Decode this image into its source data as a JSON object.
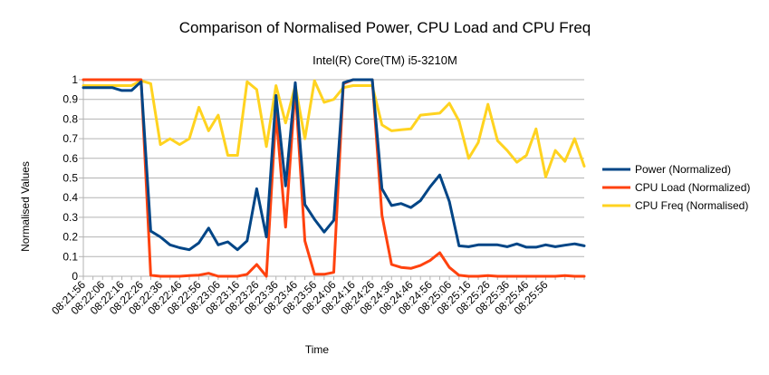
{
  "chart_data": {
    "type": "line",
    "title": "Comparison of Normalised Power, CPU Load and CPU Freq",
    "subtitle": "Intel(R) Core(TM) i5-3210M",
    "xlabel": "Time",
    "ylabel": "Normalised Values",
    "ylim": [
      0,
      1
    ],
    "yticks": [
      "0",
      "0.1",
      "0.2",
      "0.3",
      "0.4",
      "0.5",
      "0.6",
      "0.7",
      "0.8",
      "0.9",
      "1"
    ],
    "grid": "horizontal",
    "legend_position": "right",
    "xtick_labels": [
      "08:21:56",
      "08:22:06",
      "08:22:16",
      "08:22:26",
      "08:22:36",
      "08:22:46",
      "08:22:56",
      "08:23:06",
      "08:23:16",
      "08:23:26",
      "08:23:36",
      "08:23:46",
      "08:23:56",
      "08:24:06",
      "08:24:16",
      "08:24:26",
      "08:24:36",
      "08:24:46",
      "08:24:56",
      "08:25:06",
      "08:25:16",
      "08:25:26",
      "08:25:36",
      "08:25:46",
      "08:25:56"
    ],
    "x_start": "08:21:56",
    "x_step_seconds": 2,
    "series": [
      {
        "name": "Power (Normalized)",
        "color": "#004586",
        "values": [
          0.96,
          0.96,
          0.96,
          0.96,
          0.945,
          0.945,
          0.99,
          0.23,
          0.2,
          0.16,
          0.145,
          0.135,
          0.17,
          0.245,
          0.16,
          0.175,
          0.135,
          0.18,
          0.445,
          0.2,
          0.92,
          0.46,
          0.985,
          0.365,
          0.29,
          0.225,
          0.285,
          0.985,
          1.0,
          1.0,
          1.0,
          0.445,
          0.36,
          0.37,
          0.35,
          0.385,
          0.455,
          0.515,
          0.38,
          0.155,
          0.15,
          0.16,
          0.16,
          0.16,
          0.15,
          0.165,
          0.148,
          0.148,
          0.16,
          0.15,
          0.158,
          0.165,
          0.155
        ]
      },
      {
        "name": "CPU Load (Normalized)",
        "color": "#ff420e",
        "values": [
          1.0,
          1.0,
          1.0,
          1.0,
          1.0,
          1.0,
          1.0,
          0.005,
          0.0,
          0.0,
          0.0,
          0.003,
          0.006,
          0.015,
          0.0,
          0.0,
          0.0,
          0.01,
          0.06,
          0.0,
          0.83,
          0.25,
          0.96,
          0.18,
          0.01,
          0.01,
          0.02,
          0.98,
          1.0,
          1.0,
          1.0,
          0.31,
          0.06,
          0.045,
          0.04,
          0.055,
          0.08,
          0.12,
          0.045,
          0.005,
          0.0,
          0.0,
          0.003,
          0.0,
          0.0,
          0.0,
          0.0,
          0.0,
          0.0,
          0.0,
          0.003,
          0.0,
          0.0
        ]
      },
      {
        "name": "CPU Freq (Normalised)",
        "color": "#ffd320",
        "values": [
          0.97,
          0.97,
          0.97,
          0.97,
          0.97,
          0.97,
          0.995,
          0.98,
          0.67,
          0.7,
          0.67,
          0.7,
          0.86,
          0.74,
          0.82,
          0.615,
          0.615,
          0.99,
          0.95,
          0.66,
          0.97,
          0.78,
          0.97,
          0.7,
          0.995,
          0.885,
          0.9,
          0.96,
          0.97,
          0.97,
          0.97,
          0.77,
          0.74,
          0.745,
          0.75,
          0.82,
          0.825,
          0.83,
          0.88,
          0.79,
          0.6,
          0.68,
          0.875,
          0.69,
          0.64,
          0.58,
          0.615,
          0.75,
          0.505,
          0.64,
          0.585,
          0.7,
          0.56
        ]
      }
    ]
  }
}
